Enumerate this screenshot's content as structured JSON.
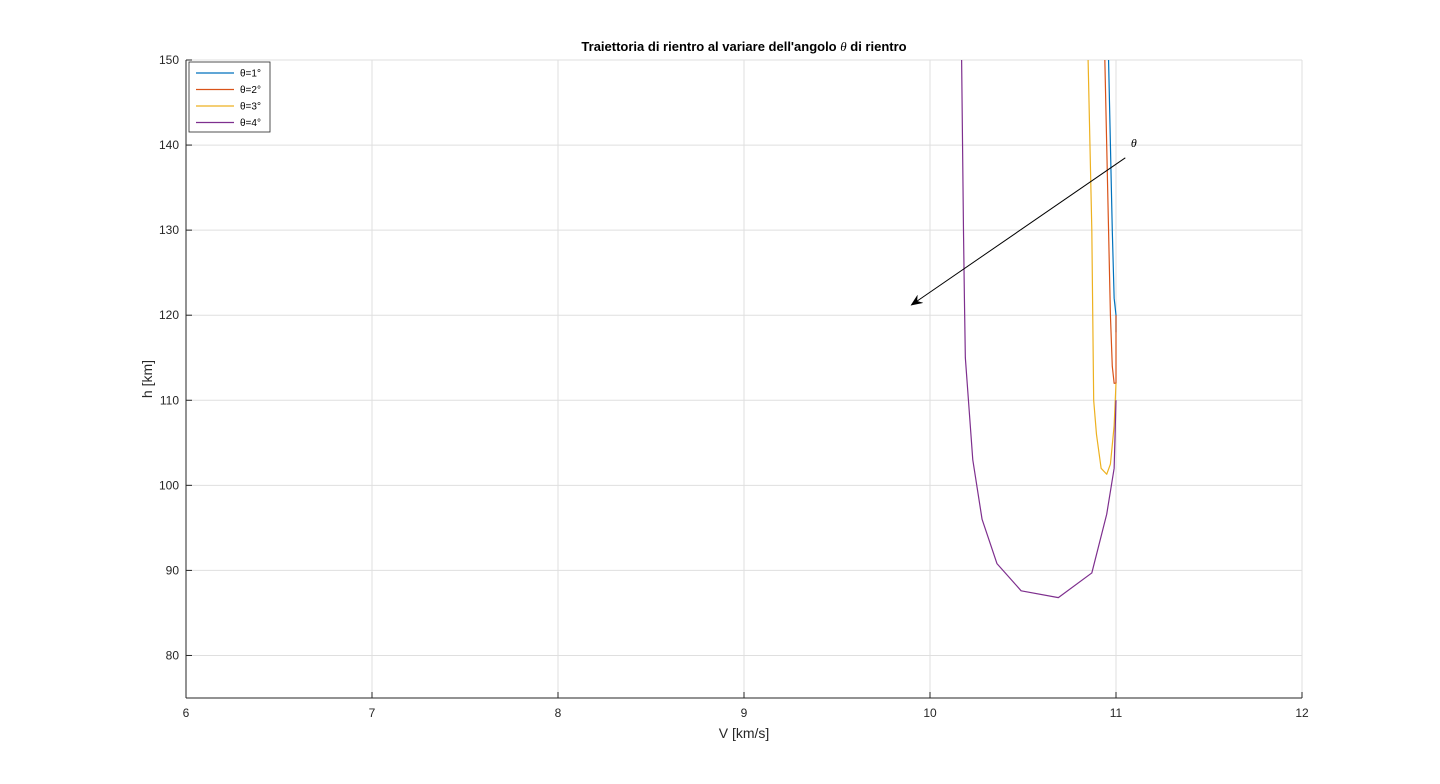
{
  "chart_data": {
    "type": "line",
    "title_prefix": "Traiettoria di rientro al variare dell'angolo ",
    "title_symbol": "θ",
    "title_suffix": " di rientro",
    "xlabel": "V [km/s]",
    "ylabel": "h [km]",
    "xlim": [
      6,
      12
    ],
    "ylim": [
      75,
      150
    ],
    "xticks": [
      "6",
      "7",
      "8",
      "9",
      "10",
      "11",
      "12"
    ],
    "yticks": [
      "80",
      "90",
      "100",
      "110",
      "120",
      "130",
      "140",
      "150"
    ],
    "grid": true,
    "legend_position": "top-left",
    "series": [
      {
        "name": "θ=1°",
        "color": "#0072BD",
        "points": [
          [
            10.96,
            150
          ],
          [
            10.97,
            140
          ],
          [
            10.98,
            130
          ],
          [
            10.99,
            122
          ],
          [
            11.0,
            120
          ],
          [
            11.0,
            118
          ]
        ]
      },
      {
        "name": "θ=2°",
        "color": "#D95319",
        "points": [
          [
            10.94,
            150
          ],
          [
            10.95,
            140
          ],
          [
            10.96,
            130
          ],
          [
            10.97,
            120
          ],
          [
            10.98,
            114
          ],
          [
            10.99,
            112
          ],
          [
            11.0,
            112
          ],
          [
            11.0,
            114
          ],
          [
            11.0,
            120
          ]
        ]
      },
      {
        "name": "θ=3°",
        "color": "#EDB120",
        "points": [
          [
            10.85,
            150
          ],
          [
            10.86,
            140
          ],
          [
            10.87,
            130
          ],
          [
            10.875,
            120
          ],
          [
            10.88,
            110
          ],
          [
            10.895,
            106
          ],
          [
            10.92,
            102
          ],
          [
            10.95,
            101.3
          ],
          [
            10.97,
            102.5
          ],
          [
            10.99,
            107
          ],
          [
            11.0,
            112
          ]
        ]
      },
      {
        "name": "θ=4°",
        "color": "#7E2F8E",
        "points": [
          [
            10.17,
            150
          ],
          [
            10.175,
            140
          ],
          [
            10.18,
            130
          ],
          [
            10.185,
            122
          ],
          [
            10.19,
            115
          ],
          [
            10.2,
            112
          ],
          [
            10.23,
            103
          ],
          [
            10.28,
            96
          ],
          [
            10.36,
            90.8
          ],
          [
            10.49,
            87.6
          ],
          [
            10.69,
            86.8
          ],
          [
            10.87,
            89.7
          ],
          [
            10.95,
            96.6
          ],
          [
            10.99,
            102
          ],
          [
            11.0,
            110
          ]
        ]
      }
    ],
    "annotation": {
      "label": "θ",
      "arrow_from": [
        11.05,
        138.5
      ],
      "arrow_to": [
        9.9,
        121.2
      ],
      "label_at": [
        11.08,
        139.8
      ]
    }
  }
}
